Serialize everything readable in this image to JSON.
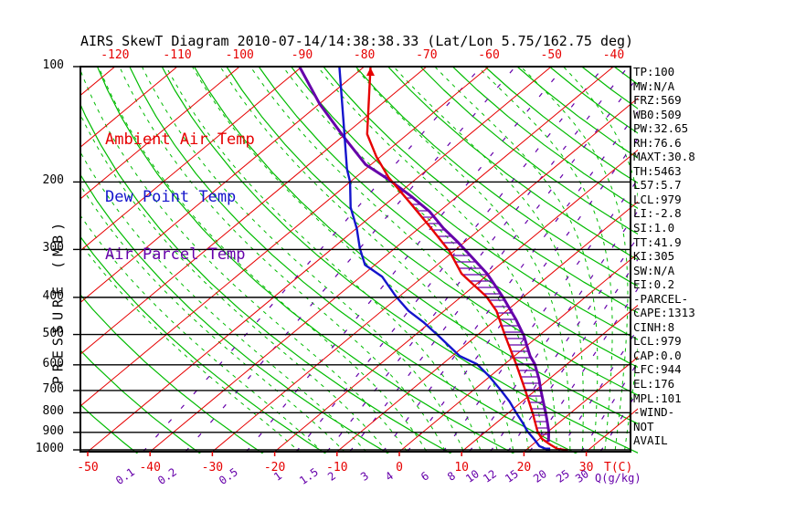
{
  "title": "AIRS SkewT Diagram 2010-07-14/14:38:38.33 (Lat/Lon 5.75/162.75 deg)",
  "colors": {
    "ambient": "#e60000",
    "dewpoint": "#1414cc",
    "parcel": "#6600aa",
    "grid_green": "#00bb00",
    "grid_red": "#e60000",
    "mixing_purple": "#6600aa",
    "axis_black": "#000000",
    "background": "#ffffff"
  },
  "legend": {
    "items": [
      {
        "label": "Ambient Air Temp",
        "color": "#e60000"
      },
      {
        "label": "Dew Point Temp",
        "color": "#1414cc"
      },
      {
        "label": "Air Parcel Temp",
        "color": "#6600aa"
      }
    ]
  },
  "axes": {
    "pressure_label": "PRESSURE (MB)",
    "pressure_ticks": [
      100,
      200,
      300,
      400,
      500,
      600,
      700,
      800,
      900,
      1000
    ],
    "temp_top_ticks": [
      -120,
      -110,
      -100,
      -90,
      -80,
      -70,
      -60,
      -50,
      -40
    ],
    "temp_bottom_ticks": [
      -50,
      -40,
      -30,
      -20,
      -10,
      0,
      10,
      20,
      30
    ],
    "temp_unit": "T(C)",
    "mixing_ticks": [
      0.1,
      0.2,
      0.5,
      1,
      1.5,
      2,
      3,
      4,
      6,
      8,
      10,
      12,
      15,
      20,
      25,
      30
    ],
    "mixing_unit": "Q(g/kg)"
  },
  "side_panel": {
    "items": [
      "TP:100",
      "MW:N/A",
      "FRZ:569",
      "WB0:509",
      "PW:32.65",
      "RH:76.6",
      "MAXT:30.8",
      "TH:5463",
      "L57:5.7",
      "LCL:979",
      "LI:-2.8",
      "SI:1.0",
      "TT:41.9",
      "KI:305",
      "SW:N/A",
      "EI:0.2",
      "-PARCEL-",
      "CAPE:1313",
      "CINH:8",
      "LCL:979",
      "CAP:0.0",
      "LFC:944",
      "EL:176",
      "MPL:101",
      "-WIND-",
      "NOT",
      "AVAIL"
    ]
  },
  "chart_data": {
    "type": "line",
    "title": "AIRS SkewT Diagram 2010-07-14/14:38:38.33 (Lat/Lon 5.75/162.75 deg)",
    "xlabel": "T(C)",
    "ylabel": "PRESSURE (MB)",
    "x_axis": {
      "bottom_labels": [
        -50,
        -40,
        -30,
        -20,
        -10,
        0,
        10,
        20,
        30
      ],
      "top_labels": [
        -120,
        -110,
        -100,
        -90,
        -80,
        -70,
        -60,
        -50,
        -40
      ]
    },
    "pressure_range": [
      100,
      1050
    ],
    "grid": {
      "isotherms_c_step": 10,
      "dry_adiabats": true,
      "moist_adiabats": true,
      "mixing_ratio_lines_g_kg": [
        0.1,
        0.2,
        0.5,
        1,
        1.5,
        2,
        3,
        4,
        6,
        8,
        10,
        12,
        15,
        20,
        25,
        30
      ]
    },
    "series": [
      {
        "name": "Ambient Air Temp",
        "color": "#e60000",
        "points_p_t": [
          [
            100,
            -79
          ],
          [
            150,
            -66.5
          ],
          [
            172,
            -60.6
          ],
          [
            195,
            -54.6
          ],
          [
            226,
            -46.5
          ],
          [
            260,
            -38.9
          ],
          [
            303,
            -30.7
          ],
          [
            347,
            -24.4
          ],
          [
            398,
            -16
          ],
          [
            434,
            -11.6
          ],
          [
            504,
            -5.4
          ],
          [
            597,
            1.8
          ],
          [
            700,
            8.4
          ],
          [
            803,
            14
          ],
          [
            896,
            18.3
          ],
          [
            936,
            20.4
          ],
          [
            968,
            22.8
          ],
          [
            994,
            24.8
          ],
          [
            1003,
            26.8
          ]
        ]
      },
      {
        "name": "Dew Point Temp",
        "color": "#1414cc",
        "points_p_t": [
          [
            100,
            -84
          ],
          [
            140,
            -72.5
          ],
          [
            185,
            -63
          ],
          [
            200,
            -60
          ],
          [
            233,
            -55
          ],
          [
            264,
            -50
          ],
          [
            298,
            -45.6
          ],
          [
            329,
            -41.6
          ],
          [
            353,
            -36.6
          ],
          [
            398,
            -30.5
          ],
          [
            434,
            -25.7
          ],
          [
            464,
            -21.2
          ],
          [
            504,
            -16.1
          ],
          [
            569,
            -8.8
          ],
          [
            597,
            -4.5
          ],
          [
            641,
            -0.3
          ],
          [
            700,
            4.5
          ],
          [
            748,
            8
          ],
          [
            803,
            11.4
          ],
          [
            848,
            14.1
          ],
          [
            896,
            16.7
          ],
          [
            941,
            19.4
          ],
          [
            978,
            21.4
          ],
          [
            1000,
            23.5
          ]
        ]
      },
      {
        "name": "Air Parcel Temp",
        "color": "#6600aa",
        "points_p_t": [
          [
            100,
            -90.4
          ],
          [
            125,
            -80
          ],
          [
            152,
            -69.9
          ],
          [
            180,
            -60.9
          ],
          [
            197,
            -54.3
          ],
          [
            218,
            -47.4
          ],
          [
            239,
            -41.5
          ],
          [
            264,
            -36.1
          ],
          [
            286,
            -31.3
          ],
          [
            311,
            -26.5
          ],
          [
            347,
            -20.3
          ],
          [
            398,
            -13.4
          ],
          [
            457,
            -6.8
          ],
          [
            504,
            -2.4
          ],
          [
            569,
            2.5
          ],
          [
            597,
            4.8
          ],
          [
            652,
            8.3
          ],
          [
            700,
            10.9
          ],
          [
            760,
            14
          ],
          [
            803,
            16.1
          ],
          [
            848,
            18.1
          ],
          [
            896,
            20.1
          ],
          [
            952,
            22
          ]
        ]
      }
    ],
    "hatch": {
      "between": [
        "Ambient Air Temp",
        "Air Parcel Temp"
      ],
      "style": "horizontal-lines",
      "pressure_top": 200,
      "pressure_bottom": 952
    }
  }
}
